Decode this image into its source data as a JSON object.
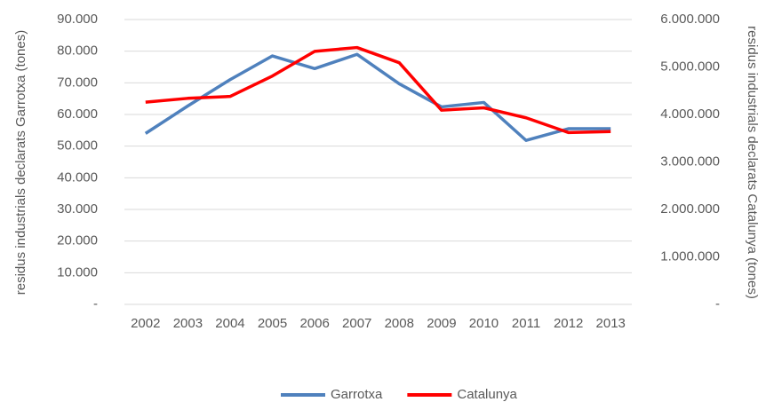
{
  "chart_data": {
    "type": "line",
    "categories": [
      "2002",
      "2003",
      "2004",
      "2005",
      "2006",
      "2007",
      "2008",
      "2009",
      "2010",
      "2011",
      "2012",
      "2013"
    ],
    "series": [
      {
        "name": "Garrotxa",
        "color": "#4f81bd",
        "values": [
          54000,
          62700,
          71000,
          78500,
          74500,
          79000,
          69700,
          62400,
          63800,
          51800,
          55500,
          55500
        ]
      },
      {
        "name": "Catalunya",
        "color": "#ff0000",
        "axis": "y2",
        "values": [
          4260000,
          4340000,
          4380000,
          4810000,
          5330000,
          5410000,
          5090000,
          4090000,
          4140000,
          3930000,
          3620000,
          3640000
        ]
      }
    ],
    "ylabel": "residus industrials declarats Garrotxa (tones)",
    "y2label": "residus industrials declarats Catalunya (tones)",
    "ylim": [
      0,
      90000
    ],
    "yticks": [
      {
        "value": 0,
        "label": "-"
      },
      {
        "value": 10000,
        "label": "10.000"
      },
      {
        "value": 20000,
        "label": "20.000"
      },
      {
        "value": 30000,
        "label": "30.000"
      },
      {
        "value": 40000,
        "label": "40.000"
      },
      {
        "value": 50000,
        "label": "50.000"
      },
      {
        "value": 60000,
        "label": "60.000"
      },
      {
        "value": 70000,
        "label": "70.000"
      },
      {
        "value": 80000,
        "label": "80.000"
      },
      {
        "value": 90000,
        "label": "90.000"
      }
    ],
    "y2lim": [
      0,
      6000000
    ],
    "y2ticks": [
      {
        "value": 0,
        "label": "-"
      },
      {
        "value": 1000000,
        "label": "1.000.000"
      },
      {
        "value": 2000000,
        "label": "2.000.000"
      },
      {
        "value": 3000000,
        "label": "3.000.000"
      },
      {
        "value": 4000000,
        "label": "4.000.000"
      },
      {
        "value": 5000000,
        "label": "5.000.000"
      },
      {
        "value": 6000000,
        "label": "6.000.000"
      }
    ],
    "grid": true,
    "legend": "bottom"
  }
}
